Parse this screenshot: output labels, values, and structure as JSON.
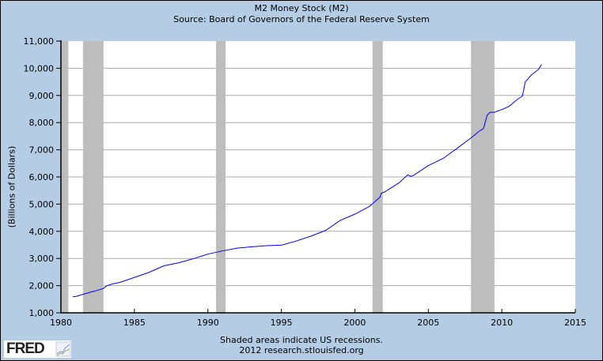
{
  "chart_data": {
    "type": "line",
    "title": "M2 Money Stock (M2)",
    "subtitle": "Source: Board of Governors of the Federal Reserve System",
    "xlabel": "",
    "ylabel": "(Billions of Dollars)",
    "xlim": [
      1980,
      2015
    ],
    "ylim": [
      1000,
      11000
    ],
    "grid": true,
    "xticks": [
      1980,
      1985,
      1990,
      1995,
      2000,
      2005,
      2010,
      2015
    ],
    "xtick_labels": [
      "1980",
      "1985",
      "1990",
      "1995",
      "2000",
      "2005",
      "2010",
      "2015"
    ],
    "yticks": [
      1000,
      2000,
      3000,
      4000,
      5000,
      6000,
      7000,
      8000,
      9000,
      10000,
      11000
    ],
    "ytick_labels": [
      "1,000",
      "2,000",
      "3,000",
      "4,000",
      "5,000",
      "6,000",
      "7,000",
      "8,000",
      "9,000",
      "10,000",
      "11,000"
    ],
    "recessions": [
      [
        1980.0,
        1980.5
      ],
      [
        1981.5,
        1982.9
      ],
      [
        1990.55,
        1991.2
      ],
      [
        2001.2,
        2001.9
      ],
      [
        2007.9,
        2009.5
      ]
    ],
    "series": [
      {
        "name": "M2",
        "color": "#0000ff",
        "x": [
          1980.8,
          1981,
          1981.5,
          1982,
          1982.5,
          1982.9,
          1983.1,
          1983.5,
          1984,
          1985,
          1986,
          1987,
          1988,
          1989,
          1990,
          1991,
          1992,
          1993,
          1994,
          1995,
          1996,
          1997,
          1998,
          1999,
          2000,
          2001,
          2001.7,
          2001.8,
          2002,
          2003,
          2003.6,
          2003.8,
          2004,
          2005,
          2006,
          2007,
          2008,
          2008.5,
          2008.75,
          2009,
          2009.2,
          2009.5,
          2010,
          2010.5,
          2011,
          2011.4,
          2011.6,
          2012,
          2012.5,
          2012.7
        ],
        "values": [
          1590,
          1600,
          1680,
          1760,
          1830,
          1900,
          1990,
          2060,
          2120,
          2300,
          2490,
          2730,
          2840,
          2990,
          3160,
          3280,
          3380,
          3430,
          3470,
          3490,
          3640,
          3820,
          4030,
          4400,
          4630,
          4920,
          5250,
          5400,
          5440,
          5780,
          6080,
          6020,
          6060,
          6420,
          6680,
          7070,
          7480,
          7700,
          7780,
          8270,
          8380,
          8380,
          8480,
          8600,
          8830,
          8980,
          9500,
          9750,
          9960,
          10140
        ]
      }
    ],
    "footnote": "Shaded areas indicate US recessions.",
    "source_note": "2012 research.stlouisfed.org",
    "logo": "FRED"
  }
}
